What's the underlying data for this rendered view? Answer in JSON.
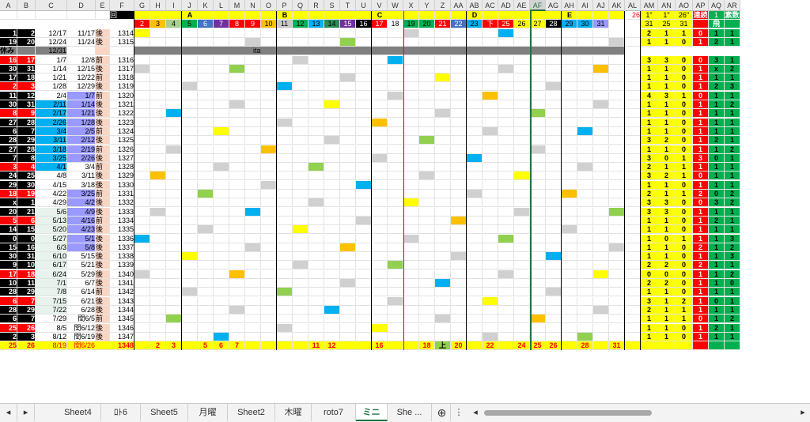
{
  "columns": [
    "A",
    "B",
    "C",
    "D",
    "E",
    "F",
    "G",
    "H",
    "I",
    "J",
    "K",
    "L",
    "M",
    "N",
    "O",
    "P",
    "Q",
    "R",
    "S",
    "T",
    "U",
    "V",
    "W",
    "X",
    "Y",
    "Z",
    "AA",
    "AB",
    "AC",
    "AD",
    "AE",
    "AF",
    "AG",
    "AH",
    "AI",
    "AJ",
    "AK",
    "AL",
    "AM",
    "AN",
    "AO",
    "AP",
    "AQ",
    "AR"
  ],
  "selected_column": "AF",
  "group_labels": {
    "A": "A",
    "B": "B",
    "C": "C",
    "D": "D",
    "E": "E"
  },
  "top_row": {
    "round_label": "回",
    "al": "26",
    "am": "1\"",
    "an": "1\"",
    "ao": "26\"",
    "ap_label": "連続",
    "aq": "1",
    "ar_label": "素数"
  },
  "row2": {
    "am": "31",
    "an": "25",
    "ao": "31",
    "aq_label": "飛"
  },
  "rows": [
    {
      "a": "1",
      "b": "2",
      "c": "12/17",
      "d": "11/17",
      "e": "後",
      "f": "1314",
      "am": "2",
      "an": "1",
      "ao": "1",
      "ap": "0",
      "aq": "1",
      "ar": "1"
    },
    {
      "a": "19",
      "b": "20",
      "c": "12/24",
      "d": "11/24",
      "e": "後",
      "f": "1315",
      "am": "1",
      "an": "1",
      "ao": "0",
      "ap": "1",
      "aq": "2",
      "ar": "1"
    },
    {
      "a": "休み",
      "b": "",
      "c": "12/31",
      "d": "",
      "e": "",
      "f": "",
      "note": "ita"
    },
    {
      "a": "16",
      "b": "17",
      "c": "1/7",
      "d": "12/8",
      "e": "前",
      "f": "1316",
      "am": "3",
      "an": "3",
      "ao": "0",
      "ap": "0",
      "aq": "3",
      "ar": "1"
    },
    {
      "a": "30",
      "b": "31",
      "c": "1/14",
      "d": "12/15",
      "e": "後",
      "f": "1317",
      "am": "1",
      "an": "1",
      "ao": "0",
      "ap": "1",
      "aq": "x",
      "ar": "2"
    },
    {
      "a": "17",
      "b": "18",
      "c": "1/21",
      "d": "12/22",
      "e": "前",
      "f": "1318",
      "am": "1",
      "an": "1",
      "ao": "0",
      "ap": "1",
      "aq": "1",
      "ar": "1"
    },
    {
      "a": "2",
      "b": "3",
      "c": "1/28",
      "d": "12/29",
      "e": "後",
      "f": "1319",
      "am": "1",
      "an": "1",
      "ao": "0",
      "ap": "1",
      "aq": "2",
      "ar": "3"
    },
    {
      "a": "11",
      "b": "12",
      "c": "2/4",
      "d": "1/7",
      "e": "前",
      "f": "1320",
      "am": "4",
      "an": "3",
      "ao": "1",
      "ap": "0",
      "aq": "1",
      "ar": "1"
    },
    {
      "a": "30",
      "b": "31",
      "c": "2/11",
      "d": "1/14",
      "e": "後",
      "f": "1321",
      "am": "1",
      "an": "1",
      "ao": "0",
      "ap": "1",
      "aq": "1",
      "ar": "2"
    },
    {
      "a": "8",
      "b": "9",
      "c": "2/17",
      "d": "1/21",
      "e": "後",
      "f": "1322",
      "am": "1",
      "an": "1",
      "ao": "0",
      "ap": "1",
      "aq": "1",
      "ar": "1"
    },
    {
      "a": "27",
      "b": "28",
      "c": "2/26",
      "d": "1/28",
      "e": "後",
      "f": "1323",
      "am": "1",
      "an": "1",
      "ao": "0",
      "ap": "1",
      "aq": "1",
      "ar": "1"
    },
    {
      "a": "6",
      "b": "7",
      "c": "3/4",
      "d": "2/5",
      "e": "前",
      "f": "1324",
      "am": "1",
      "an": "1",
      "ao": "0",
      "ap": "1",
      "aq": "1",
      "ar": "1"
    },
    {
      "a": "28",
      "b": "29",
      "c": "3/11",
      "d": "2/12",
      "e": "後",
      "f": "1325",
      "am": "3",
      "an": "2",
      "ao": "0",
      "ap": "1",
      "aq": "2",
      "ar": "1"
    },
    {
      "a": "27",
      "b": "28",
      "c": "3/18",
      "d": "2/19",
      "e": "前",
      "f": "1326",
      "am": "1",
      "an": "1",
      "ao": "0",
      "ap": "1",
      "aq": "1",
      "ar": "2"
    },
    {
      "a": "7",
      "b": "8",
      "c": "3/25",
      "d": "2/26",
      "e": "後",
      "f": "1327",
      "am": "3",
      "an": "0",
      "ao": "1",
      "ap": "3",
      "aq": "0",
      "ar": "1"
    },
    {
      "a": "3",
      "b": "4",
      "c": "4/1",
      "d": "3/4",
      "e": "前",
      "f": "1328",
      "am": "2",
      "an": "1",
      "ao": "1",
      "ap": "1",
      "aq": "1",
      "ar": "1"
    },
    {
      "a": "24",
      "b": "25",
      "c": "4/8",
      "d": "3/11",
      "e": "後",
      "f": "1329",
      "am": "3",
      "an": "2",
      "ao": "1",
      "ap": "0",
      "aq": "1",
      "ar": "1"
    },
    {
      "a": "29",
      "b": "30",
      "c": "4/15",
      "d": "3/18",
      "e": "後",
      "f": "1330",
      "am": "1",
      "an": "1",
      "ao": "0",
      "ap": "1",
      "aq": "1",
      "ar": "1"
    },
    {
      "a": "18",
      "b": "19",
      "c": "4/22",
      "d": "3/25",
      "e": "前",
      "f": "1331",
      "am": "2",
      "an": "1",
      "ao": "1",
      "ap": "2",
      "aq": "0",
      "ar": "2"
    },
    {
      "a": "x",
      "b": "1",
      "c": "4/29",
      "d": "4/2",
      "e": "後",
      "f": "1332",
      "am": "3",
      "an": "3",
      "ao": "0",
      "ap": "0",
      "aq": "3",
      "ar": "2"
    },
    {
      "a": "20",
      "b": "21",
      "c": "5/6",
      "d": "4/9",
      "e": "後",
      "f": "1333",
      "am": "3",
      "an": "3",
      "ao": "0",
      "ap": "1",
      "aq": "1",
      "ar": "1"
    },
    {
      "a": "5",
      "b": "6",
      "c": "5/13",
      "d": "4/16",
      "e": "前",
      "f": "1334",
      "am": "1",
      "an": "1",
      "ao": "0",
      "ap": "1",
      "aq": "2",
      "ar": "1"
    },
    {
      "a": "14",
      "b": "15",
      "c": "5/20",
      "d": "4/23",
      "e": "後",
      "f": "1335",
      "am": "1",
      "an": "1",
      "ao": "0",
      "ap": "1",
      "aq": "1",
      "ar": "1"
    },
    {
      "a": "0",
      "b": "0",
      "c": "5/27",
      "d": "5/1",
      "e": "後",
      "f": "1336",
      "am": "1",
      "an": "0",
      "ao": "1",
      "ap": "1",
      "aq": "1",
      "ar": "3"
    },
    {
      "a": "15",
      "b": "16",
      "c": "6/3",
      "d": "5/8",
      "e": "後",
      "f": "1337",
      "am": "1",
      "an": "1",
      "ao": "0",
      "ap": "2",
      "aq": "1",
      "ar": "2"
    },
    {
      "a": "30",
      "b": "31",
      "c": "6/10",
      "d": "5/15",
      "e": "後",
      "f": "1338",
      "am": "1",
      "an": "1",
      "ao": "0",
      "ap": "1",
      "aq": "1",
      "ar": "3"
    },
    {
      "a": "9",
      "b": "10",
      "c": "6/17",
      "d": "5/21",
      "e": "後",
      "f": "1339",
      "am": "2",
      "an": "2",
      "ao": "0",
      "ap": "2",
      "aq": "1",
      "ar": "1"
    },
    {
      "a": "17",
      "b": "18",
      "c": "6/24",
      "d": "5/29",
      "e": "後",
      "f": "1340",
      "am": "0",
      "an": "0",
      "ao": "0",
      "ap": "1",
      "aq": "1",
      "ar": "2"
    },
    {
      "a": "10",
      "b": "11",
      "c": "7/1",
      "d": "6/7",
      "e": "後",
      "f": "1341",
      "am": "2",
      "an": "2",
      "ao": "0",
      "ap": "1",
      "aq": "1",
      "ar": "0"
    },
    {
      "a": "28",
      "b": "29",
      "c": "7/8",
      "d": "6/14",
      "e": "前",
      "f": "1342",
      "am": "1",
      "an": "1",
      "ao": "0",
      "ap": "1",
      "aq": "1",
      "ar": "1"
    },
    {
      "a": "6",
      "b": "7",
      "c": "7/15",
      "d": "6/21",
      "e": "後",
      "f": "1343",
      "am": "3",
      "an": "1",
      "ao": "2",
      "ap": "1",
      "aq": "0",
      "ar": "1"
    },
    {
      "a": "28",
      "b": "29",
      "c": "7/22",
      "d": "6/28",
      "e": "後",
      "f": "1344",
      "am": "2",
      "an": "1",
      "ao": "1",
      "ap": "1",
      "aq": "1",
      "ar": "1"
    },
    {
      "a": "6",
      "b": "7",
      "c": "7/29",
      "d": "閏6/5",
      "e": "前",
      "f": "1345",
      "am": "1",
      "an": "1",
      "ao": "1",
      "ap": "0",
      "aq": "1",
      "ar": "2"
    },
    {
      "a": "25",
      "b": "26",
      "c": "8/5",
      "d": "閏6/12",
      "e": "後",
      "f": "1346",
      "am": "1",
      "an": "1",
      "ao": "0",
      "ap": "1",
      "aq": "2",
      "ar": "1"
    },
    {
      "a": "2",
      "b": "3",
      "c": "8/12",
      "d": "閏6/19",
      "e": "後",
      "f": "1347",
      "am": "1",
      "an": "1",
      "ao": "0",
      "ap": "1",
      "aq": "1",
      "ar": "1"
    },
    {
      "a": "25",
      "b": "26",
      "c": "8/19",
      "d": "閏6/26",
      "e": "",
      "f": "1348",
      "am": "",
      "an": "",
      "ao": "",
      "ap": "",
      "aq": "",
      "ar": ""
    }
  ],
  "numbers": {
    "r1": [
      "2",
      "3",
      "4",
      "5",
      "6",
      "7",
      "8",
      "9",
      "10",
      "11",
      "12",
      "13",
      "14",
      "15",
      "16",
      "17",
      "18",
      "19",
      "20",
      "21",
      "22",
      "23",
      "下",
      "25",
      "26",
      "27",
      "28",
      "29",
      "30",
      "31"
    ],
    "last_row": [
      "2",
      "3",
      "5",
      "6",
      "7",
      "11",
      "12",
      "16",
      "18",
      "上",
      "20",
      "22",
      "24",
      "25",
      "26",
      "28",
      "31"
    ]
  },
  "tabs": [
    "Sheet4",
    "ﾛﾄ6",
    "Sheet5",
    "月曜",
    "Sheet2",
    "木曜",
    "roto7",
    "ミニ",
    "She ..."
  ],
  "active_tab": "ミニ",
  "colors": {
    "yellow": "#ffff00",
    "red": "#ff0000",
    "black": "#000000",
    "green": "#00b050",
    "orange": "#ffc000",
    "lavender": "#9999ff",
    "purple": "#7030a0",
    "gray": "#808080",
    "lightgray": "#d0d0d0",
    "sky": "#00b0f0",
    "lime": "#92d050",
    "blue": "#4472c4",
    "teal": "#2e8b57",
    "pink": "#fbd5c4"
  }
}
